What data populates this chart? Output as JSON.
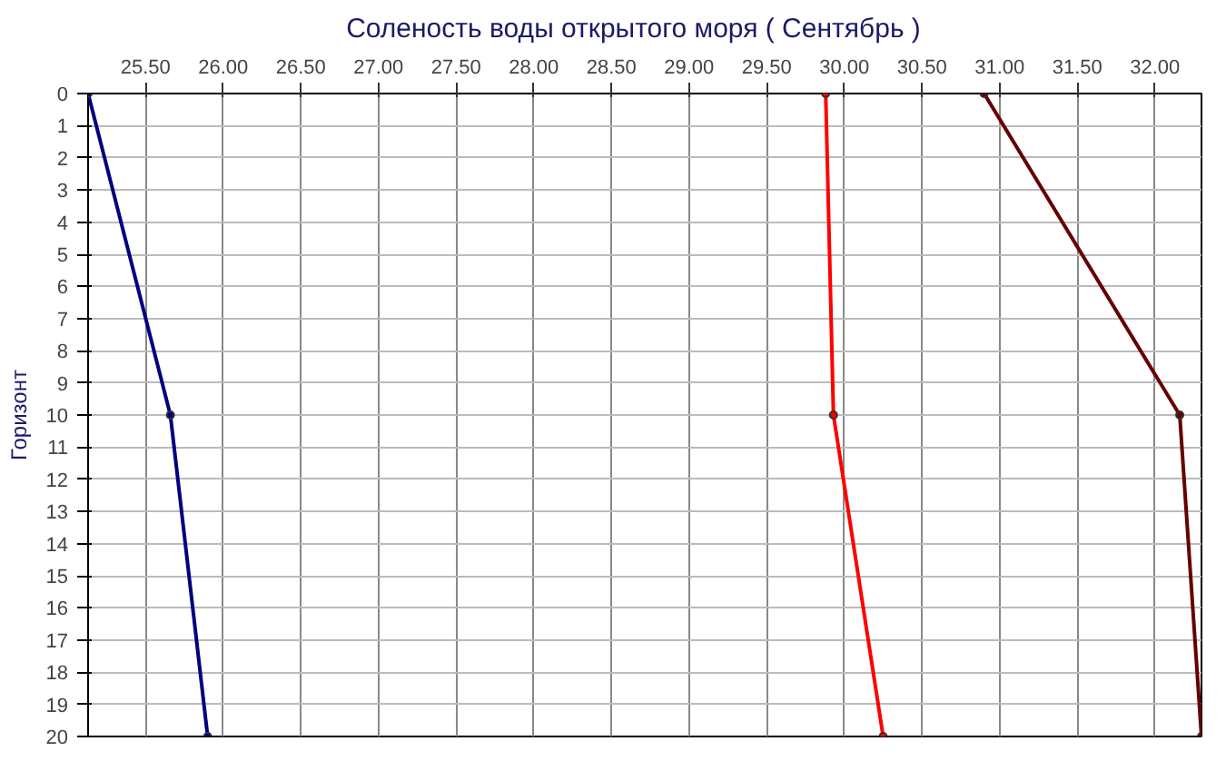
{
  "chart_data": {
    "type": "line",
    "title": "Соленость воды открытого моря    ( Сентябрь )",
    "ylabel": "Горизонт",
    "xlim": [
      25.13,
      32.3
    ],
    "xticks": [
      {
        "value": 25.5,
        "label": "25.50"
      },
      {
        "value": 26,
        "label": "26.00"
      },
      {
        "value": 26.5,
        "label": "26.50"
      },
      {
        "value": 27,
        "label": "27.00"
      },
      {
        "value": 27.5,
        "label": "27.50"
      },
      {
        "value": 28,
        "label": "28.00"
      },
      {
        "value": 28.5,
        "label": "28.50"
      },
      {
        "value": 29,
        "label": "29.00"
      },
      {
        "value": 29.5,
        "label": "29.50"
      },
      {
        "value": 30,
        "label": "30.00"
      },
      {
        "value": 30.5,
        "label": "30.50"
      },
      {
        "value": 31,
        "label": "31.00"
      },
      {
        "value": 31.5,
        "label": "31.50"
      },
      {
        "value": 32,
        "label": "32.00"
      }
    ],
    "ylim": [
      20,
      0
    ],
    "yticks": [
      0,
      1,
      2,
      3,
      4,
      5,
      6,
      7,
      8,
      9,
      10,
      11,
      12,
      13,
      14,
      15,
      16,
      17,
      18,
      19,
      20
    ],
    "grid": true,
    "marker": "circle",
    "line_style": "solid",
    "series": [
      {
        "color": "#000080",
        "x": [
          25.13,
          25.66,
          25.9
        ],
        "values": [
          0,
          10,
          20
        ]
      },
      {
        "color": "#ff0000",
        "x": [
          29.88,
          29.93,
          30.25
        ],
        "values": [
          0,
          10,
          20
        ]
      },
      {
        "color": "#660000",
        "x": [
          30.9,
          32.16,
          32.3
        ],
        "values": [
          0,
          10,
          20
        ]
      }
    ]
  }
}
